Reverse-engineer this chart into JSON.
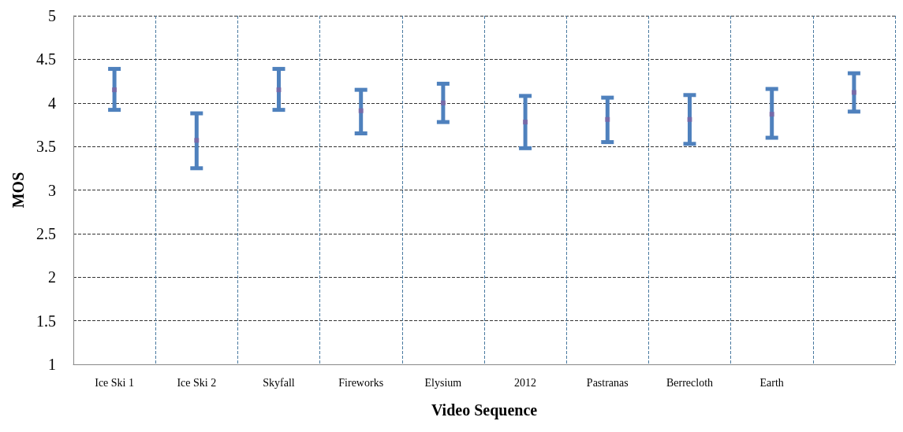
{
  "chart_data": {
    "type": "scatter",
    "xlabel": "Video Sequence",
    "ylabel": "MOS",
    "categories": [
      "Ice Ski 1",
      "Ice Ski 2",
      "Skyfall",
      "Fireworks",
      "Elysium",
      "2012",
      "Pastranas",
      "Berrecloth",
      "Earth",
      null
    ],
    "series": [
      {
        "color": "#8064a2",
        "values": [
          4.15,
          3.57,
          4.15,
          3.91,
          4.0,
          3.78,
          3.81,
          3.81,
          3.87,
          4.12
        ],
        "errors": [
          [
            3.92,
            4.39
          ],
          [
            3.25,
            3.88
          ],
          [
            3.92,
            4.39
          ],
          [
            3.65,
            4.15
          ],
          [
            3.78,
            4.22
          ],
          [
            3.48,
            4.08
          ],
          [
            3.55,
            4.06
          ],
          [
            3.53,
            4.09
          ],
          [
            3.6,
            4.16
          ],
          [
            3.9,
            4.34
          ]
        ]
      }
    ],
    "ylim": [
      1,
      5
    ],
    "yticks": [
      1,
      1.5,
      2,
      2.5,
      3,
      3.5,
      4,
      4.5,
      5
    ],
    "grid": true,
    "marker": "square"
  }
}
